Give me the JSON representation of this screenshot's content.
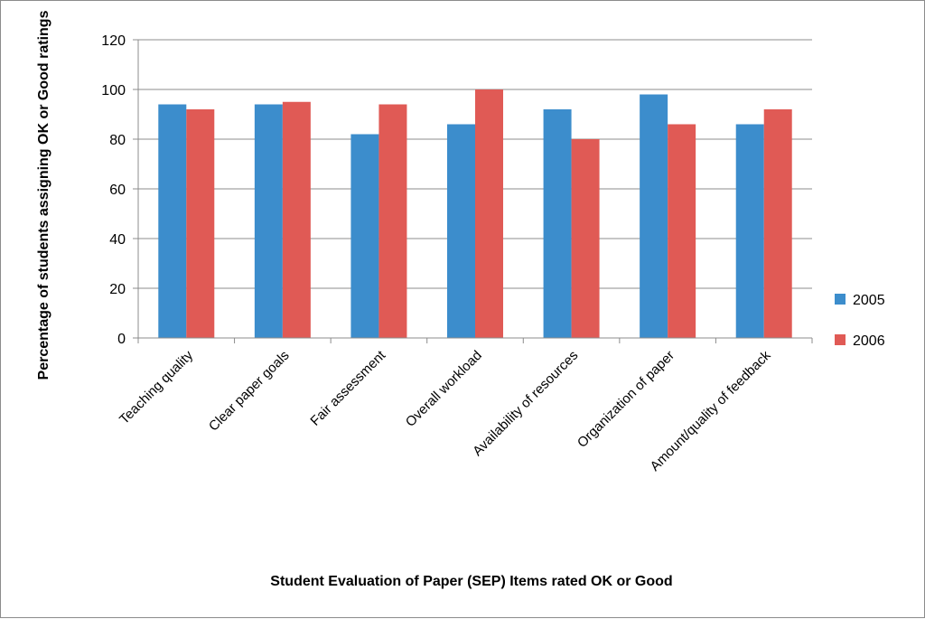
{
  "chart_data": {
    "type": "bar",
    "title": "",
    "xlabel": "Student Evaluation of Paper (SEP) Items rated OK or Good",
    "ylabel": "Percentage of students assigning OK or Good ratings",
    "ylim": [
      0,
      120
    ],
    "yticks": [
      0,
      20,
      40,
      60,
      80,
      100,
      120
    ],
    "grid": true,
    "legend_position": "right",
    "categories": [
      "Teaching quality",
      "Clear paper goals",
      "Fair assessment",
      "Overall workload",
      "Availability of resources",
      "Organization of paper",
      "Amount/quality of feedback"
    ],
    "series": [
      {
        "name": "2005",
        "color": "#3c8dcc",
        "values": [
          94,
          94,
          82,
          86,
          92,
          98,
          86
        ]
      },
      {
        "name": "2006",
        "color": "#e05a55",
        "values": [
          92,
          95,
          94,
          100,
          80,
          86,
          92
        ]
      }
    ]
  }
}
